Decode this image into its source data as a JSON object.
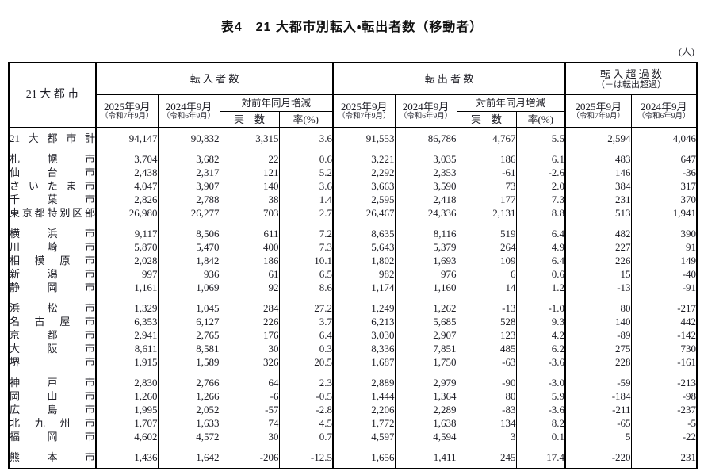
{
  "page": {
    "title": "表4　21 大都市別転入・転出者数（移動者）",
    "unit_label": "(人)"
  },
  "header": {
    "city_col": "21 大 都 市",
    "in_group": "転 入 者 数",
    "out_group": "転 出 者 数",
    "net_group": "転 入 超 過 数",
    "net_group_sub": "（－は転出超過）",
    "col_2025": "2025年9月",
    "col_2025_sub": "（令和7年9月）",
    "col_2024": "2024年9月",
    "col_2024_sub": "（令和6年9月）",
    "yoy_change": "対前年同月増減",
    "actual": "実　数",
    "rate": "率(%)"
  },
  "rows": [
    {
      "name": "21大都市計",
      "group_start": false,
      "values": [
        "94,147",
        "90,832",
        "3,315",
        "3.6",
        "91,553",
        "86,786",
        "4,767",
        "5.5",
        "2,594",
        "4,046"
      ]
    },
    {
      "name": "札幌市",
      "group_start": true,
      "values": [
        "3,704",
        "3,682",
        "22",
        "0.6",
        "3,221",
        "3,035",
        "186",
        "6.1",
        "483",
        "647"
      ]
    },
    {
      "name": "仙台市",
      "group_start": false,
      "values": [
        "2,438",
        "2,317",
        "121",
        "5.2",
        "2,292",
        "2,353",
        "-61",
        "-2.6",
        "146",
        "-36"
      ]
    },
    {
      "name": "さいたま市",
      "group_start": false,
      "values": [
        "4,047",
        "3,907",
        "140",
        "3.6",
        "3,663",
        "3,590",
        "73",
        "2.0",
        "384",
        "317"
      ]
    },
    {
      "name": "千葉市",
      "group_start": false,
      "values": [
        "2,826",
        "2,788",
        "38",
        "1.4",
        "2,595",
        "2,418",
        "177",
        "7.3",
        "231",
        "370"
      ]
    },
    {
      "name": "東京都特別区部",
      "group_start": false,
      "values": [
        "26,980",
        "26,277",
        "703",
        "2.7",
        "26,467",
        "24,336",
        "2,131",
        "8.8",
        "513",
        "1,941"
      ]
    },
    {
      "name": "横浜市",
      "group_start": true,
      "values": [
        "9,117",
        "8,506",
        "611",
        "7.2",
        "8,635",
        "8,116",
        "519",
        "6.4",
        "482",
        "390"
      ]
    },
    {
      "name": "川崎市",
      "group_start": false,
      "values": [
        "5,870",
        "5,470",
        "400",
        "7.3",
        "5,643",
        "5,379",
        "264",
        "4.9",
        "227",
        "91"
      ]
    },
    {
      "name": "相模原市",
      "group_start": false,
      "values": [
        "2,028",
        "1,842",
        "186",
        "10.1",
        "1,802",
        "1,693",
        "109",
        "6.4",
        "226",
        "149"
      ]
    },
    {
      "name": "新潟市",
      "group_start": false,
      "values": [
        "997",
        "936",
        "61",
        "6.5",
        "982",
        "976",
        "6",
        "0.6",
        "15",
        "-40"
      ]
    },
    {
      "name": "静岡市",
      "group_start": false,
      "values": [
        "1,161",
        "1,069",
        "92",
        "8.6",
        "1,174",
        "1,160",
        "14",
        "1.2",
        "-13",
        "-91"
      ]
    },
    {
      "name": "浜松市",
      "group_start": true,
      "values": [
        "1,329",
        "1,045",
        "284",
        "27.2",
        "1,249",
        "1,262",
        "-13",
        "-1.0",
        "80",
        "-217"
      ]
    },
    {
      "name": "名古屋市",
      "group_start": false,
      "values": [
        "6,353",
        "6,127",
        "226",
        "3.7",
        "6,213",
        "5,685",
        "528",
        "9.3",
        "140",
        "442"
      ]
    },
    {
      "name": "京都市",
      "group_start": false,
      "values": [
        "2,941",
        "2,765",
        "176",
        "6.4",
        "3,030",
        "2,907",
        "123",
        "4.2",
        "-89",
        "-142"
      ]
    },
    {
      "name": "大阪市",
      "group_start": false,
      "values": [
        "8,611",
        "8,581",
        "30",
        "0.3",
        "8,336",
        "7,851",
        "485",
        "6.2",
        "275",
        "730"
      ]
    },
    {
      "name": "堺市",
      "group_start": false,
      "values": [
        "1,915",
        "1,589",
        "326",
        "20.5",
        "1,687",
        "1,750",
        "-63",
        "-3.6",
        "228",
        "-161"
      ]
    },
    {
      "name": "神戸市",
      "group_start": true,
      "values": [
        "2,830",
        "2,766",
        "64",
        "2.3",
        "2,889",
        "2,979",
        "-90",
        "-3.0",
        "-59",
        "-213"
      ]
    },
    {
      "name": "岡山市",
      "group_start": false,
      "values": [
        "1,260",
        "1,266",
        "-6",
        "-0.5",
        "1,444",
        "1,364",
        "80",
        "5.9",
        "-184",
        "-98"
      ]
    },
    {
      "name": "広島市",
      "group_start": false,
      "values": [
        "1,995",
        "2,052",
        "-57",
        "-2.8",
        "2,206",
        "2,289",
        "-83",
        "-3.6",
        "-211",
        "-237"
      ]
    },
    {
      "name": "北九州市",
      "group_start": false,
      "values": [
        "1,707",
        "1,633",
        "74",
        "4.5",
        "1,772",
        "1,638",
        "134",
        "8.2",
        "-65",
        "-5"
      ]
    },
    {
      "name": "福岡市",
      "group_start": false,
      "values": [
        "4,602",
        "4,572",
        "30",
        "0.7",
        "4,597",
        "4,594",
        "3",
        "0.1",
        "5",
        "-22"
      ]
    },
    {
      "name": "熊本市",
      "group_start": true,
      "values": [
        "1,436",
        "1,642",
        "-206",
        "-12.5",
        "1,656",
        "1,411",
        "245",
        "17.4",
        "-220",
        "231"
      ]
    }
  ]
}
